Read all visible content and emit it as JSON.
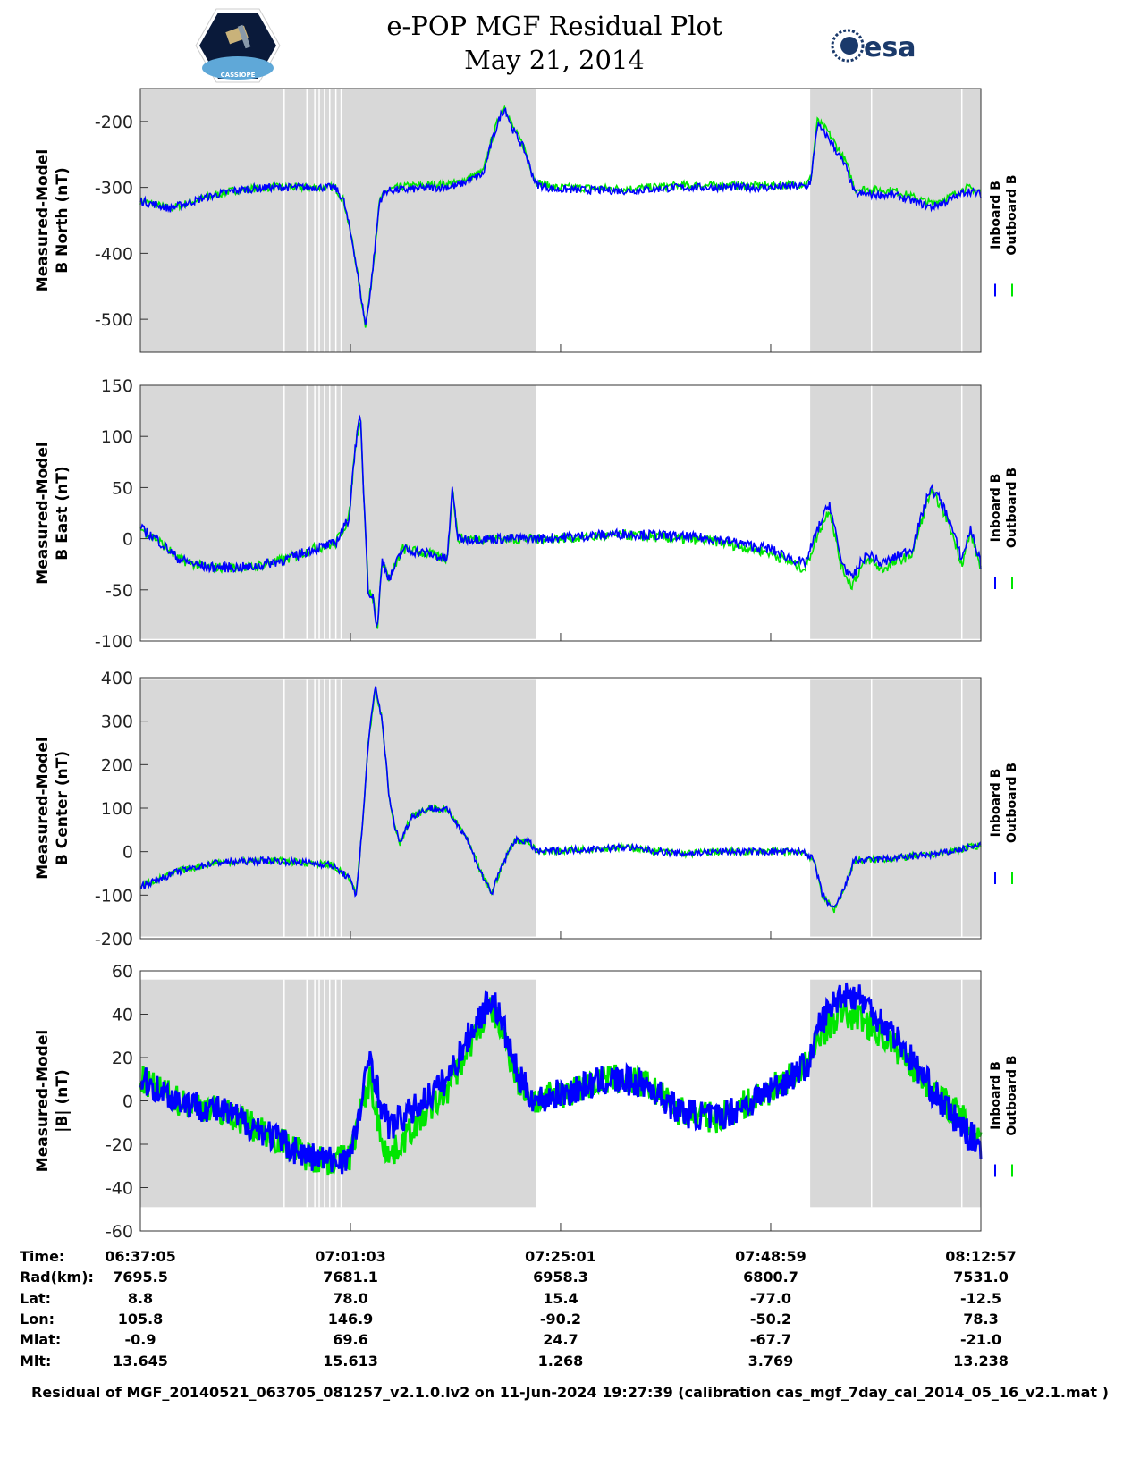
{
  "header": {
    "title_line1": "e-POP MGF Residual Plot",
    "title_line2": "May 21, 2014",
    "left_logo_text": "CASSIOPE",
    "right_logo_text": "esa"
  },
  "colors": {
    "inboard": "#0000ff",
    "outboard": "#00e600",
    "shade": "#d8d8d8"
  },
  "chart_data": [
    {
      "type": "line",
      "id": "north",
      "ylabel": [
        "Measured-Model",
        "B North (nT)"
      ],
      "ylim": [
        -550,
        -150
      ],
      "yticks": [
        -200,
        -300,
        -400,
        -500
      ],
      "xlim": [
        0,
        95.87
      ],
      "shade_ylim": [
        -550,
        -150
      ],
      "noise": 6,
      "legend": [
        "Inboard B",
        "Outboard B"
      ],
      "inboard": [
        [
          0,
          -320
        ],
        [
          3.4,
          -332
        ],
        [
          7.5,
          -315
        ],
        [
          10.5,
          -305
        ],
        [
          14.6,
          -300
        ],
        [
          18.7,
          -300
        ],
        [
          22.2,
          -300
        ],
        [
          23.2,
          -320
        ],
        [
          24.3,
          -390
        ],
        [
          25.1,
          -460
        ],
        [
          25.7,
          -510
        ],
        [
          26.3,
          -450
        ],
        [
          27.3,
          -320
        ],
        [
          28.1,
          -305
        ],
        [
          31.9,
          -302
        ],
        [
          36,
          -298
        ],
        [
          39.1,
          -280
        ],
        [
          40.1,
          -230
        ],
        [
          41.1,
          -190
        ],
        [
          41.6,
          -180
        ],
        [
          42.4,
          -210
        ],
        [
          43.7,
          -240
        ],
        [
          45.1,
          -295
        ],
        [
          47.3,
          -303
        ],
        [
          55.5,
          -305
        ],
        [
          61.6,
          -300
        ],
        [
          65.7,
          -300
        ],
        [
          71.9,
          -300
        ],
        [
          76,
          -298
        ],
        [
          76.5,
          -290
        ],
        [
          77.2,
          -205
        ],
        [
          78.5,
          -225
        ],
        [
          80.5,
          -270
        ],
        [
          81.5,
          -310
        ],
        [
          86.1,
          -312
        ],
        [
          90.2,
          -330
        ],
        [
          92.2,
          -320
        ],
        [
          94.3,
          -305
        ],
        [
          95.87,
          -310
        ]
      ],
      "outboard_offset": [
        [
          0,
          0
        ],
        [
          28,
          0
        ],
        [
          30,
          5
        ],
        [
          45,
          3
        ],
        [
          76,
          3
        ],
        [
          78,
          8
        ],
        [
          82,
          8
        ],
        [
          95.87,
          4
        ]
      ]
    },
    {
      "type": "line",
      "id": "east",
      "ylabel": [
        "Measured-Model",
        "B East (nT)"
      ],
      "ylim": [
        -100,
        150
      ],
      "yticks": [
        150,
        100,
        50,
        0,
        -50,
        -100
      ],
      "xlim": [
        0,
        95.87
      ],
      "shade_ylim": [
        -98,
        150
      ],
      "noise": 5,
      "legend": [
        "Inboard B",
        "Outboard B"
      ],
      "inboard": [
        [
          0,
          10
        ],
        [
          1.8,
          0
        ],
        [
          4.4,
          -20
        ],
        [
          7.5,
          -28
        ],
        [
          12.6,
          -28
        ],
        [
          16.7,
          -20
        ],
        [
          19.7,
          -10
        ],
        [
          22.2,
          -5
        ],
        [
          23.8,
          20
        ],
        [
          24.5,
          90
        ],
        [
          25.1,
          120
        ],
        [
          25.5,
          40
        ],
        [
          26,
          -50
        ],
        [
          26.6,
          -60
        ],
        [
          27,
          -90
        ],
        [
          27.6,
          -20
        ],
        [
          28.4,
          -40
        ],
        [
          29.9,
          -10
        ],
        [
          33,
          -15
        ],
        [
          35,
          -20
        ],
        [
          35.6,
          50
        ],
        [
          36.2,
          0
        ],
        [
          41.1,
          0
        ],
        [
          45.1,
          0
        ],
        [
          55.4,
          5
        ],
        [
          65.6,
          0
        ],
        [
          71.7,
          -10
        ],
        [
          75.8,
          -25
        ],
        [
          77.3,
          10
        ],
        [
          78.6,
          35
        ],
        [
          79.9,
          -20
        ],
        [
          81.1,
          -40
        ],
        [
          82.4,
          -20
        ],
        [
          83.2,
          -15
        ],
        [
          84.5,
          -25
        ],
        [
          88,
          -10
        ],
        [
          90.1,
          50
        ],
        [
          91.1,
          40
        ],
        [
          92.2,
          20
        ],
        [
          93.7,
          -20
        ],
        [
          94.7,
          10
        ],
        [
          95.87,
          -25
        ]
      ],
      "outboard_offset": [
        [
          0,
          0
        ],
        [
          40,
          0
        ],
        [
          70,
          -3
        ],
        [
          80,
          -6
        ],
        [
          95.87,
          -4
        ]
      ]
    },
    {
      "type": "line",
      "id": "center",
      "ylabel": [
        "Measured-Model",
        "B Center (nT)"
      ],
      "ylim": [
        -200,
        400
      ],
      "yticks": [
        400,
        300,
        200,
        100,
        0,
        -100,
        -200
      ],
      "xlim": [
        0,
        95.87
      ],
      "shade_ylim": [
        -195,
        395
      ],
      "noise": 8,
      "legend": [
        "Inboard B",
        "Outboard B"
      ],
      "inboard": [
        [
          0,
          -80
        ],
        [
          4.4,
          -45
        ],
        [
          8.5,
          -25
        ],
        [
          14.6,
          -20
        ],
        [
          18.7,
          -25
        ],
        [
          21.7,
          -30
        ],
        [
          23.8,
          -60
        ],
        [
          24.6,
          -100
        ],
        [
          25.3,
          50
        ],
        [
          26,
          250
        ],
        [
          26.8,
          380
        ],
        [
          27.6,
          300
        ],
        [
          28.4,
          120
        ],
        [
          28.9,
          70
        ],
        [
          29.6,
          20
        ],
        [
          30.9,
          80
        ],
        [
          33,
          100
        ],
        [
          35,
          95
        ],
        [
          37,
          40
        ],
        [
          39.1,
          -60
        ],
        [
          40.1,
          -95
        ],
        [
          41.1,
          -40
        ],
        [
          42.6,
          25
        ],
        [
          44.2,
          25
        ],
        [
          45.2,
          0
        ],
        [
          50.3,
          5
        ],
        [
          55.4,
          10
        ],
        [
          61.5,
          -5
        ],
        [
          65.6,
          0
        ],
        [
          71.7,
          0
        ],
        [
          75.8,
          0
        ],
        [
          76.8,
          -20
        ],
        [
          77.8,
          -100
        ],
        [
          79.1,
          -135
        ],
        [
          80.4,
          -80
        ],
        [
          81.4,
          -20
        ],
        [
          82.9,
          -20
        ],
        [
          86,
          -15
        ],
        [
          91.1,
          -5
        ],
        [
          95.87,
          15
        ]
      ],
      "outboard_offset": [
        [
          0,
          0
        ],
        [
          95.87,
          0
        ]
      ]
    },
    {
      "type": "line",
      "id": "magnitude",
      "ylabel": [
        "Measured-Model",
        "|B| (nT)"
      ],
      "ylim": [
        -60,
        60
      ],
      "yticks": [
        60,
        40,
        20,
        0,
        -20,
        -40,
        -60
      ],
      "xlim": [
        0,
        95.87
      ],
      "shade_ylim": [
        -49,
        56
      ],
      "noise": 7,
      "legend": [
        "Inboard B",
        "Outboard B"
      ],
      "inboard": [
        [
          0,
          10
        ],
        [
          4.4,
          0
        ],
        [
          9.5,
          -5
        ],
        [
          14.6,
          -15
        ],
        [
          18.7,
          -25
        ],
        [
          22.2,
          -28
        ],
        [
          24,
          -25
        ],
        [
          25.3,
          0
        ],
        [
          26.2,
          22
        ],
        [
          27.3,
          0
        ],
        [
          28.4,
          -12
        ],
        [
          30.9,
          -5
        ],
        [
          35,
          10
        ],
        [
          38.1,
          35
        ],
        [
          40.1,
          48
        ],
        [
          41.3,
          35
        ],
        [
          43.2,
          10
        ],
        [
          45.1,
          0
        ],
        [
          49.4,
          5
        ],
        [
          53.5,
          10
        ],
        [
          57.6,
          8
        ],
        [
          61.6,
          -5
        ],
        [
          65.7,
          -8
        ],
        [
          69.8,
          0
        ],
        [
          73.8,
          10
        ],
        [
          76.4,
          18
        ],
        [
          77.4,
          35
        ],
        [
          80,
          50
        ],
        [
          82,
          48
        ],
        [
          86.1,
          30
        ],
        [
          91.2,
          0
        ],
        [
          94.3,
          -15
        ],
        [
          95.87,
          -20
        ]
      ],
      "outboard_offset": [
        [
          0,
          0
        ],
        [
          25,
          0
        ],
        [
          26.2,
          -12
        ],
        [
          27.5,
          -14
        ],
        [
          28.5,
          -14
        ],
        [
          31,
          -8
        ],
        [
          35,
          -5
        ],
        [
          40,
          -5
        ],
        [
          45,
          0
        ],
        [
          76,
          0
        ],
        [
          78,
          -6
        ],
        [
          81,
          -10
        ],
        [
          86,
          -5
        ],
        [
          93,
          4
        ],
        [
          95.87,
          4
        ]
      ]
    }
  ],
  "time_axis": {
    "tick_minutes": [
      0,
      23.97,
      47.93,
      71.9,
      95.87
    ],
    "rows": [
      {
        "label": "Time:",
        "values": [
          "06:37:05",
          "07:01:03",
          "07:25:01",
          "07:48:59",
          "08:12:57"
        ]
      },
      {
        "label": "Rad(km):",
        "values": [
          "7695.5",
          "7681.1",
          "6958.3",
          "6800.7",
          "7531.0"
        ]
      },
      {
        "label": "Lat:",
        "values": [
          "8.8",
          "78.0",
          "15.4",
          "-77.0",
          "-12.5"
        ]
      },
      {
        "label": "Lon:",
        "values": [
          "105.8",
          "146.9",
          "-90.2",
          "-50.2",
          "78.3"
        ]
      },
      {
        "label": "Mlat:",
        "values": [
          "-0.9",
          "69.6",
          "24.7",
          "-67.7",
          "-21.0"
        ]
      },
      {
        "label": "Mlt:",
        "values": [
          "13.645",
          "15.613",
          "1.268",
          "3.769",
          "13.238"
        ]
      }
    ]
  },
  "shading": {
    "regions": [
      [
        0,
        45.1
      ],
      [
        76.4,
        95.87
      ]
    ],
    "gaps": [
      16.4,
      19.0,
      19.9,
      20.4,
      21.0,
      21.6,
      22.3,
      22.9,
      83.4,
      93.7
    ]
  },
  "footer": "Residual of MGF_20140521_063705_081257_v2.1.0.lv2 on 11-Jun-2024 19:27:39 (calibration cas_mgf_7day_cal_2014_05_16_v2.1.mat )"
}
